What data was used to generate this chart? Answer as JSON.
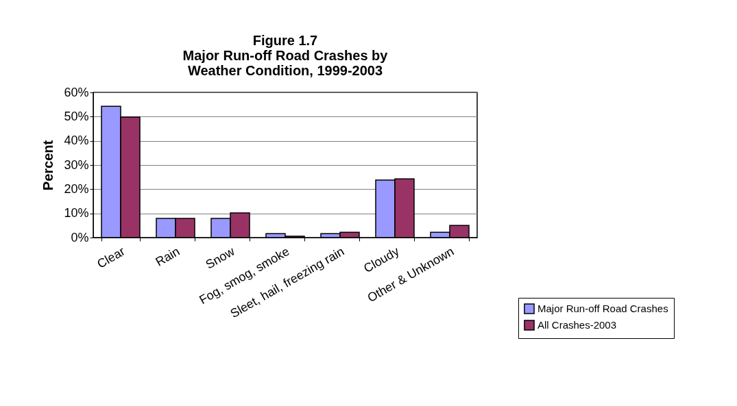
{
  "chart_data": {
    "type": "bar",
    "title": "Figure 1.7\nMajor Run-off Road Crashes by\nWeather Condition, 1999-2003",
    "ylabel": "Percent",
    "categories": [
      "Clear",
      "Rain",
      "Snow",
      "Fog, smog, smoke",
      "Sleet, hail, freezing rain",
      "Cloudy",
      "Other & Unknown"
    ],
    "series": [
      {
        "name": "Major Run-off Road Crashes",
        "color": "#9999ff",
        "values": [
          54.3,
          7.9,
          7.9,
          1.6,
          1.6,
          23.8,
          2.2
        ]
      },
      {
        "name": "All Crashes-2003",
        "color": "#993366",
        "values": [
          49.8,
          7.9,
          10.2,
          0.6,
          2.2,
          24.3,
          5.0
        ]
      }
    ],
    "ylim": [
      0,
      60
    ],
    "yticks": [
      {
        "value": 0,
        "label": "0%"
      },
      {
        "value": 10,
        "label": "10%"
      },
      {
        "value": 20,
        "label": "20%"
      },
      {
        "value": 30,
        "label": "30%"
      },
      {
        "value": 40,
        "label": "40%"
      },
      {
        "value": 50,
        "label": "50%"
      },
      {
        "value": 60,
        "label": "60%"
      }
    ],
    "grid": "y",
    "legend": "bottom right"
  }
}
